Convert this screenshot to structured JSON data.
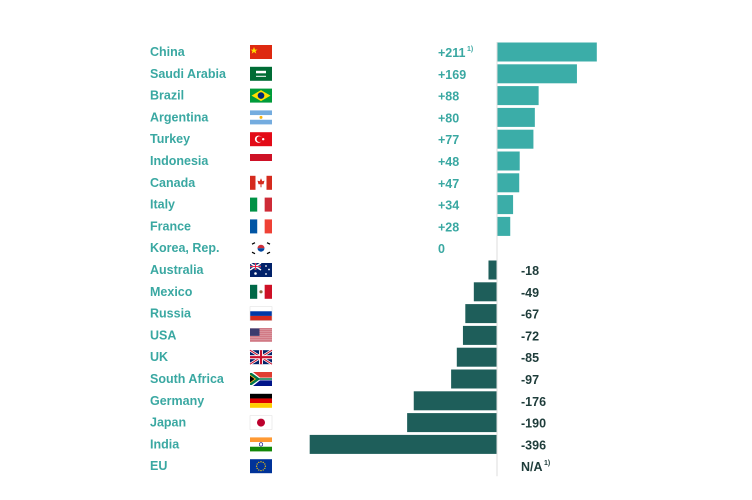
{
  "chart_data": {
    "type": "bar",
    "orientation": "horizontal",
    "footnote_marker": "1)",
    "footnoted_categories": [
      "China",
      "EU"
    ],
    "colors": {
      "positive": "#3bada8",
      "negative": "#1e5e5a",
      "label": "#3aa8a2",
      "value_positive": "#3aa8a2",
      "value_negative": "#1e3c3a"
    },
    "categories": [
      "China",
      "Saudi Arabia",
      "Brazil",
      "Argentina",
      "Turkey",
      "Indonesia",
      "Canada",
      "Italy",
      "France",
      "Korea, Rep.",
      "Australia",
      "Mexico",
      "Russia",
      "USA",
      "UK",
      "South Africa",
      "Germany",
      "Japan",
      "India",
      "EU"
    ],
    "flags": [
      "china-flag-icon",
      "saudi-arabia-flag-icon",
      "brazil-flag-icon",
      "argentina-flag-icon",
      "turkey-flag-icon",
      "indonesia-flag-icon",
      "canada-flag-icon",
      "italy-flag-icon",
      "france-flag-icon",
      "korea-flag-icon",
      "australia-flag-icon",
      "mexico-flag-icon",
      "russia-flag-icon",
      "usa-flag-icon",
      "uk-flag-icon",
      "south-africa-flag-icon",
      "germany-flag-icon",
      "japan-flag-icon",
      "india-flag-icon",
      "eu-flag-icon"
    ],
    "values": [
      211,
      169,
      88,
      80,
      77,
      48,
      47,
      34,
      28,
      0,
      -18,
      -49,
      -67,
      -72,
      -85,
      -97,
      -176,
      -190,
      -396,
      null
    ],
    "value_labels": [
      "+211",
      "+169",
      "+88",
      "+80",
      "+77",
      "+48",
      "+47",
      "+34",
      "+28",
      "0",
      "-18",
      "-49",
      "-67",
      "-72",
      "-85",
      "-97",
      "-176",
      "-190",
      "-396",
      "N/A"
    ]
  }
}
